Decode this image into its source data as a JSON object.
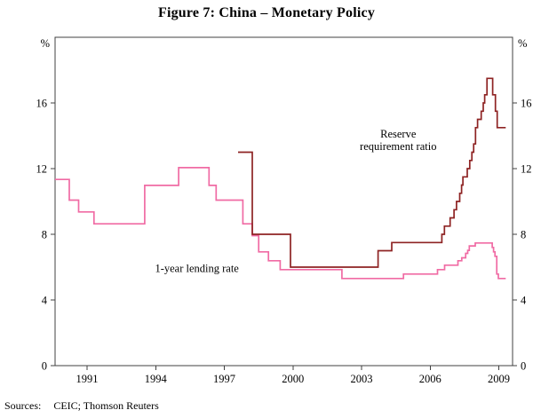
{
  "title": "Figure 7: China – Monetary Policy",
  "sources": {
    "label": "Sources:",
    "text": "CEIC; Thomson Reuters"
  },
  "chart_data": {
    "type": "line",
    "step": true,
    "title": "Figure 7: China – Monetary Policy",
    "unit_label_left": "%",
    "unit_label_right": "%",
    "xlabel": "",
    "ylabel": "%",
    "xlim": [
      1989.6,
      2009.6
    ],
    "ylim": [
      0,
      20
    ],
    "yticks": [
      0,
      4,
      8,
      12,
      16
    ],
    "xticks": [
      1991,
      1994,
      1997,
      2000,
      2003,
      2006,
      2009
    ],
    "grid": false,
    "legend_position": "inline-annotations",
    "axis_color": "#404040",
    "series": [
      {
        "name": "1-year lending rate",
        "color": "#f06ba4",
        "points": [
          [
            1989.6,
            11.34
          ],
          [
            1990.22,
            10.08
          ],
          [
            1990.63,
            9.36
          ],
          [
            1991.3,
            8.64
          ],
          [
            1993.52,
            10.98
          ],
          [
            1995.0,
            12.06
          ],
          [
            1996.33,
            10.98
          ],
          [
            1996.64,
            10.08
          ],
          [
            1997.81,
            8.64
          ],
          [
            1998.22,
            7.92
          ],
          [
            1998.5,
            6.93
          ],
          [
            1998.93,
            6.39
          ],
          [
            1999.44,
            5.85
          ],
          [
            2002.14,
            5.31
          ],
          [
            2004.83,
            5.58
          ],
          [
            2006.32,
            5.85
          ],
          [
            2006.63,
            6.12
          ],
          [
            2007.21,
            6.39
          ],
          [
            2007.38,
            6.57
          ],
          [
            2007.55,
            6.84
          ],
          [
            2007.64,
            7.02
          ],
          [
            2007.71,
            7.29
          ],
          [
            2007.97,
            7.47
          ],
          [
            2008.71,
            7.2
          ],
          [
            2008.77,
            6.93
          ],
          [
            2008.83,
            6.66
          ],
          [
            2008.91,
            5.58
          ],
          [
            2008.98,
            5.31
          ],
          [
            2009.3,
            5.31
          ]
        ]
      },
      {
        "name": "Reserve requirement ratio",
        "color": "#8e2323",
        "points": [
          [
            1997.6,
            13
          ],
          [
            1998.22,
            8
          ],
          [
            1999.89,
            6
          ],
          [
            2003.72,
            7
          ],
          [
            2004.32,
            7.5
          ],
          [
            2006.51,
            8
          ],
          [
            2006.62,
            8.5
          ],
          [
            2006.87,
            9
          ],
          [
            2007.04,
            9.5
          ],
          [
            2007.15,
            10
          ],
          [
            2007.29,
            10.5
          ],
          [
            2007.37,
            11
          ],
          [
            2007.43,
            11.5
          ],
          [
            2007.62,
            12
          ],
          [
            2007.73,
            12.5
          ],
          [
            2007.82,
            13
          ],
          [
            2007.9,
            13.5
          ],
          [
            2007.98,
            14.5
          ],
          [
            2008.07,
            15
          ],
          [
            2008.23,
            15.5
          ],
          [
            2008.32,
            16
          ],
          [
            2008.38,
            16.5
          ],
          [
            2008.48,
            17.5
          ],
          [
            2008.73,
            16.5
          ],
          [
            2008.85,
            15.5
          ],
          [
            2008.93,
            14.5
          ],
          [
            2009.3,
            14.5
          ]
        ]
      }
    ],
    "annotations": [
      {
        "lines": [
          "1-year lending rate"
        ],
        "x": 1995.8,
        "y": 5.7,
        "color": "#f06ba4"
      },
      {
        "lines": [
          "Reserve",
          "requirement ratio"
        ],
        "x": 2004.6,
        "y": 13.9,
        "color": "#8e2323"
      }
    ]
  }
}
